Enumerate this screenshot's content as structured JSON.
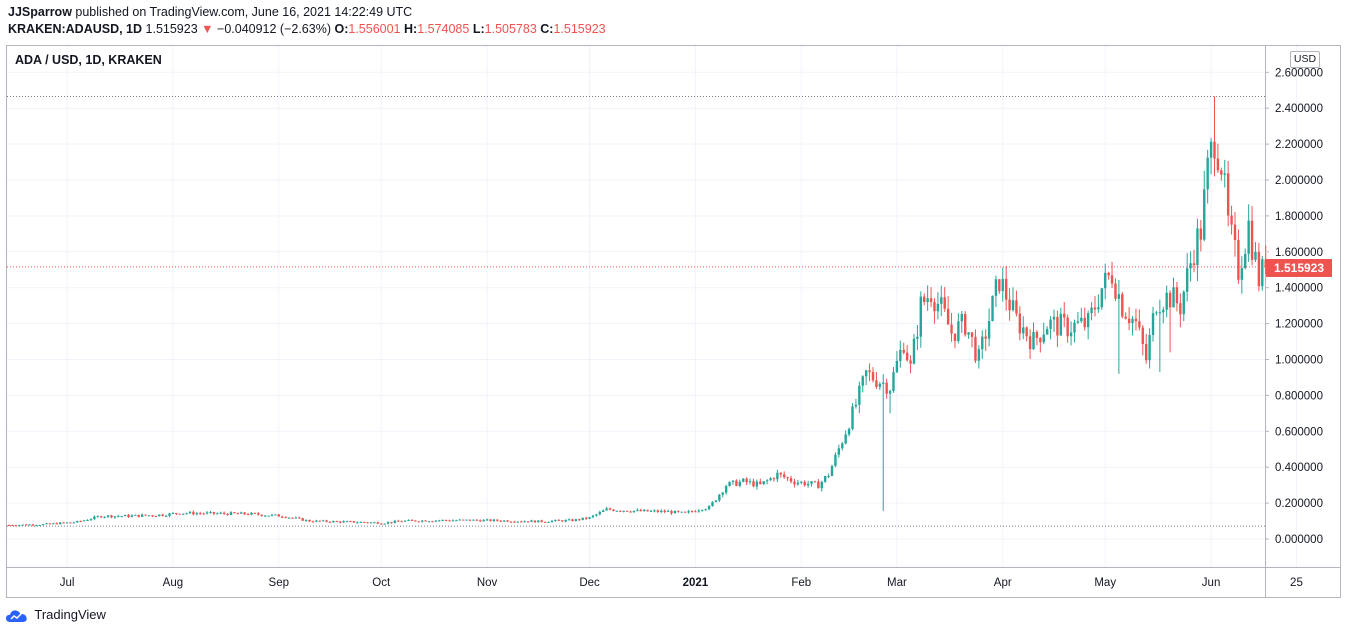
{
  "header": {
    "author": "JJSparrow",
    "published_text": "published on TradingView.com, June 16, 2021 14:22:49 UTC",
    "symbol": "KRAKEN:ADAUSD, 1D",
    "last": "1.515923",
    "change_arrow": "▼",
    "change": "−0.040912 (−2.63%)",
    "o_label": "O:",
    "o_value": "1.556001",
    "h_label": "H:",
    "h_value": "1.574085",
    "l_label": "L:",
    "l_value": "1.505783",
    "c_label": "C:",
    "c_value": "1.515923"
  },
  "legend_title": "ADA / USD, 1D, KRAKEN",
  "currency_button": "USD",
  "current_price_label": "1.515923",
  "footer_brand": "TradingView",
  "colors": {
    "up": "#26a69a",
    "down": "#ef5350",
    "grid": "#f0f3fa",
    "border": "#b2b5be"
  },
  "chart_data": {
    "type": "candlestick",
    "title": "ADA / USD, 1D, KRAKEN",
    "ylim": [
      0,
      2.7
    ],
    "y_ticks": [
      "2.600000",
      "2.400000",
      "2.200000",
      "2.000000",
      "1.800000",
      "1.600000",
      "1.400000",
      "1.200000",
      "1.000000",
      "0.800000",
      "0.600000",
      "0.400000",
      "0.200000",
      "0.000000"
    ],
    "y_tick_values": [
      2.6,
      2.4,
      2.2,
      2.0,
      1.8,
      1.6,
      1.4,
      1.2,
      1.0,
      0.8,
      0.6,
      0.4,
      0.2,
      0.0
    ],
    "x_ticks": [
      "Jul",
      "Aug",
      "Sep",
      "Oct",
      "Nov",
      "Dec",
      "2021",
      "Feb",
      "Mar",
      "Apr",
      "May",
      "Jun",
      "25"
    ],
    "x_tick_bold": [
      false,
      false,
      false,
      false,
      false,
      false,
      true,
      false,
      false,
      false,
      false,
      false,
      false
    ],
    "x_tick_days": [
      17,
      48,
      79,
      109,
      140,
      170,
      201,
      232,
      260,
      291,
      321,
      352,
      377
    ],
    "start_date": "2020-06-14",
    "day_count": 368,
    "current_price": 1.515923,
    "high_line": 2.465,
    "low_line": 0.072,
    "close_anchors": [
      [
        0,
        0.078
      ],
      [
        10,
        0.081
      ],
      [
        20,
        0.095
      ],
      [
        27,
        0.128
      ],
      [
        35,
        0.128
      ],
      [
        45,
        0.135
      ],
      [
        50,
        0.145
      ],
      [
        60,
        0.142
      ],
      [
        70,
        0.14
      ],
      [
        80,
        0.128
      ],
      [
        88,
        0.1
      ],
      [
        100,
        0.095
      ],
      [
        110,
        0.09
      ],
      [
        115,
        0.1
      ],
      [
        125,
        0.104
      ],
      [
        135,
        0.105
      ],
      [
        145,
        0.102
      ],
      [
        155,
        0.098
      ],
      [
        165,
        0.104
      ],
      [
        170,
        0.118
      ],
      [
        175,
        0.165
      ],
      [
        185,
        0.155
      ],
      [
        193,
        0.152
      ],
      [
        198,
        0.143
      ],
      [
        203,
        0.172
      ],
      [
        205,
        0.175
      ],
      [
        210,
        0.3
      ],
      [
        215,
        0.32
      ],
      [
        220,
        0.3
      ],
      [
        225,
        0.36
      ],
      [
        230,
        0.32
      ],
      [
        237,
        0.3
      ],
      [
        240,
        0.36
      ],
      [
        244,
        0.55
      ],
      [
        248,
        0.75
      ],
      [
        251,
        0.92
      ],
      [
        255,
        0.88
      ],
      [
        258,
        0.85
      ],
      [
        262,
        1.1
      ],
      [
        264,
        0.95
      ],
      [
        267,
        1.3
      ],
      [
        270,
        1.38
      ],
      [
        273,
        1.28
      ],
      [
        276,
        1.15
      ],
      [
        280,
        1.2
      ],
      [
        284,
        1.0
      ],
      [
        288,
        1.3
      ],
      [
        290,
        1.45
      ],
      [
        295,
        1.22
      ],
      [
        300,
        1.1
      ],
      [
        304,
        1.2
      ],
      [
        310,
        1.18
      ],
      [
        316,
        1.2
      ],
      [
        320,
        1.4
      ],
      [
        323,
        1.48
      ],
      [
        326,
        1.3
      ],
      [
        330,
        1.2
      ],
      [
        333,
        1.0
      ],
      [
        336,
        1.33
      ],
      [
        340,
        1.35
      ],
      [
        343,
        1.3
      ],
      [
        347,
        1.62
      ],
      [
        349,
        1.72
      ],
      [
        351,
        2.05
      ],
      [
        353,
        2.25
      ],
      [
        355,
        2.1
      ],
      [
        357,
        1.75
      ],
      [
        360,
        1.5
      ],
      [
        363,
        1.75
      ],
      [
        366,
        1.45
      ],
      [
        368,
        1.52
      ]
    ],
    "spikes": [
      {
        "day": 256,
        "low": 0.155
      },
      {
        "day": 258,
        "low": 0.7
      },
      {
        "day": 337,
        "low": 0.93
      },
      {
        "day": 340,
        "low": 1.04
      },
      {
        "day": 325,
        "low": 0.92
      }
    ]
  }
}
